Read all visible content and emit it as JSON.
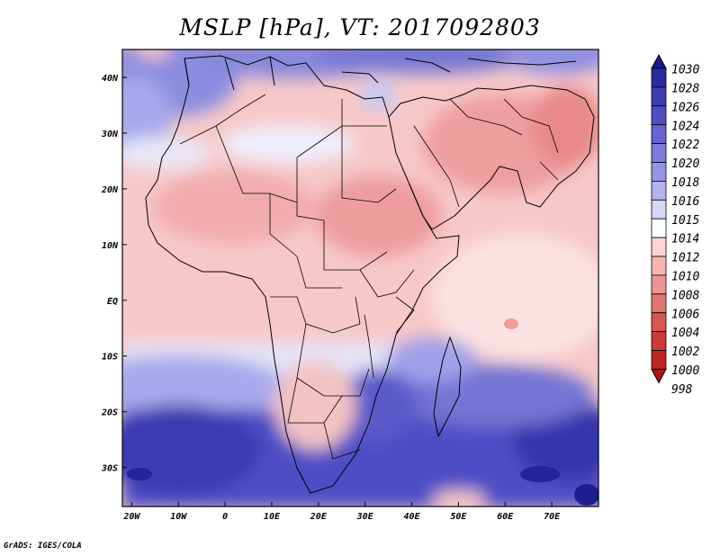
{
  "title": "MSLP [hPa], VT: 2017092803",
  "credit": "GrADS: IGES/COLA",
  "lon_ticks": [
    "20W",
    "10W",
    "0",
    "10E",
    "20E",
    "30E",
    "40E",
    "50E",
    "60E",
    "70E"
  ],
  "lat_ticks": [
    "40N",
    "30N",
    "20N",
    "10N",
    "EQ",
    "10S",
    "20S",
    "30S"
  ],
  "colorbar": {
    "levels": [
      "1030",
      "1028",
      "1026",
      "1024",
      "1022",
      "1020",
      "1018",
      "1016",
      "1015",
      "1014",
      "1012",
      "1010",
      "1008",
      "1006",
      "1004",
      "1002",
      "1000",
      "998"
    ],
    "colors": [
      "#1a1a8c",
      "#2b2ba0",
      "#3d3db3",
      "#4f4fc4",
      "#6565d2",
      "#7b7bdc",
      "#9393e6",
      "#b3b3ef",
      "#d6d6f7",
      "#ffffff",
      "#fbd5d5",
      "#f5b4b4",
      "#ec9494",
      "#e27474",
      "#d85656",
      "#cc3a3a",
      "#bf2424",
      "#ae1515"
    ]
  },
  "map": {
    "extent": {
      "lon_min": -22,
      "lon_max": 80,
      "lat_min": -37,
      "lat_max": 45
    },
    "field": "MSLP",
    "units": "hPa",
    "valid_time": "2017092803"
  }
}
